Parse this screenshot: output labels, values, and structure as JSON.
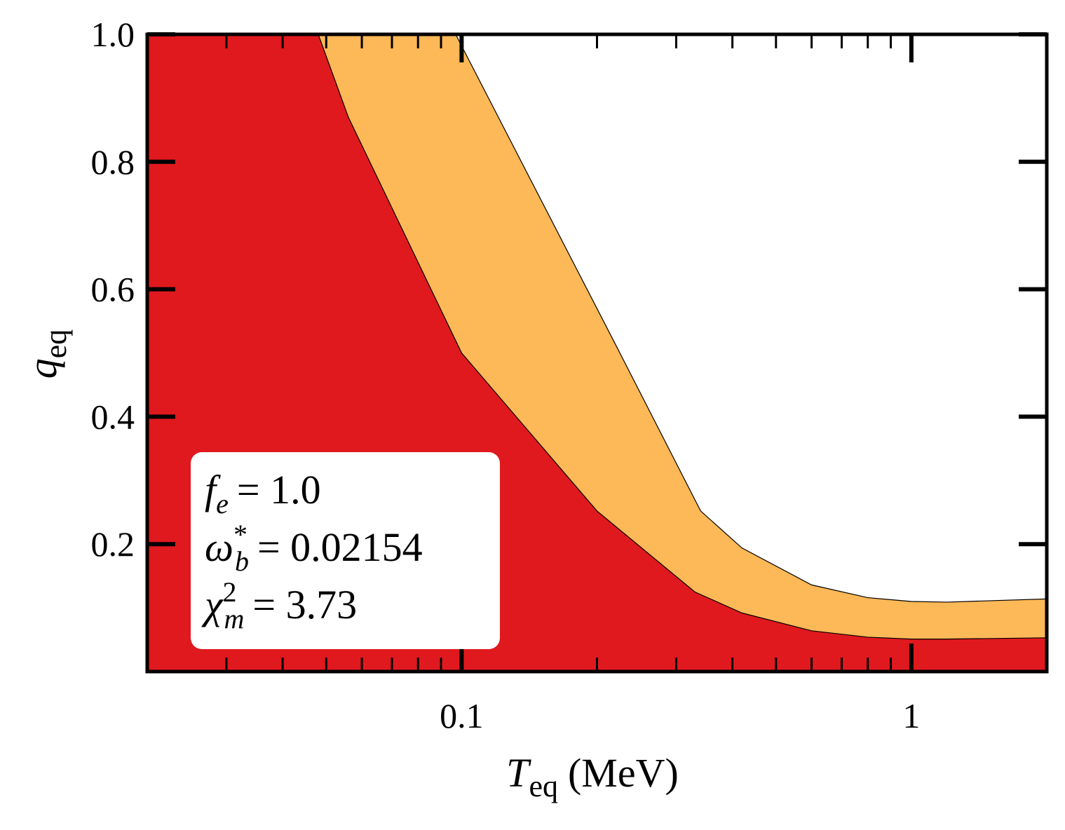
{
  "chart_data": {
    "type": "area",
    "xscale": "log",
    "xlim": [
      0.02,
      2
    ],
    "ylim": [
      0,
      1
    ],
    "xticks": [
      0.1,
      1
    ],
    "xminorticks": [
      0.03,
      0.04,
      0.05,
      0.06,
      0.07,
      0.08,
      0.09,
      0.2,
      0.3,
      0.4,
      0.5,
      0.6,
      0.7,
      0.8,
      0.9
    ],
    "yticks": [
      0.2,
      0.4,
      0.6,
      0.8,
      {
        "value": 1,
        "label": "1.0"
      }
    ],
    "xlabel": {
      "symbol": "T",
      "subscript": "eq",
      "unit": "(MeV)"
    },
    "ylabel": {
      "symbol": "q",
      "subscript": "eq"
    },
    "series": [
      {
        "color": "#fdb857",
        "x": [
          0.097,
          0.22,
          0.34,
          0.42,
          0.6,
          0.8,
          1,
          1.2,
          2
        ],
        "values": [
          1.0,
          0.513,
          0.252,
          0.194,
          0.136,
          0.116,
          0.11,
          0.109,
          0.114
        ]
      },
      {
        "color": "#e0191e",
        "x": [
          0.048,
          0.056,
          0.1,
          0.2,
          0.33,
          0.42,
          0.6,
          0.8,
          1,
          1.2,
          2
        ],
        "values": [
          1.0,
          0.87,
          0.5,
          0.252,
          0.125,
          0.092,
          0.064,
          0.054,
          0.051,
          0.051,
          0.053
        ]
      }
    ],
    "annotations": [
      {
        "symbol": "f",
        "subscript": "e",
        "text": "= 1.0"
      },
      {
        "symbol": "ω",
        "superscript": "*",
        "subscript": "b",
        "text": "= 0.02154"
      },
      {
        "symbol": "χ",
        "superscript": "2",
        "subscript": "m",
        "text": "= 3.73"
      }
    ]
  }
}
